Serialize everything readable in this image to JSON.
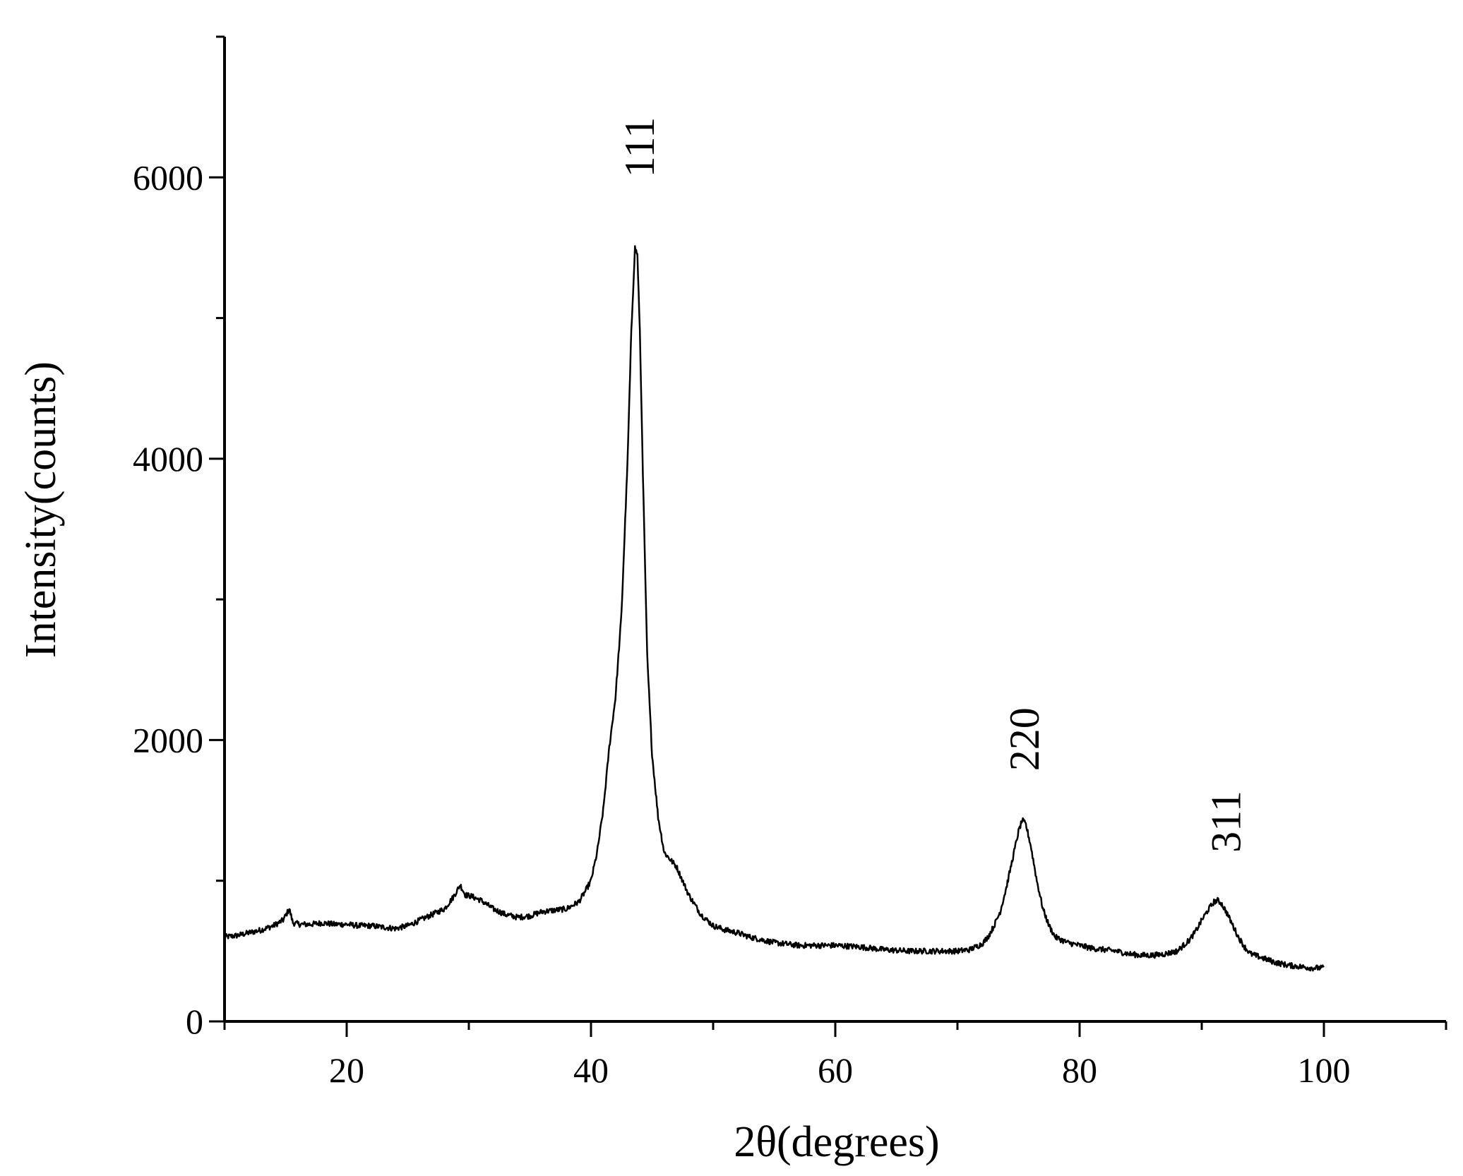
{
  "chart_data": {
    "type": "line",
    "title": "",
    "xlabel": "2θ(degrees)",
    "ylabel": "Intensity(counts)",
    "xlim": [
      10,
      110
    ],
    "ylim": [
      0,
      7000
    ],
    "x_ticks": [
      20,
      40,
      60,
      80,
      100
    ],
    "x_tick_labels": [
      "20",
      "40",
      "60",
      "80",
      "100"
    ],
    "x_minor_ticks": [
      10,
      30,
      50,
      70,
      90,
      110
    ],
    "y_ticks": [
      0,
      2000,
      4000,
      6000
    ],
    "y_tick_labels": [
      "0",
      "2000",
      "4000",
      "6000"
    ],
    "y_minor_ticks": [
      1000,
      3000,
      5000,
      7000
    ],
    "grid": false,
    "series": [
      {
        "x": [
          10,
          11,
          12,
          13,
          14,
          14.8,
          15.3,
          15.6,
          16.2,
          17,
          18,
          19,
          20,
          21,
          22,
          23,
          24,
          25,
          26,
          27,
          28,
          28.7,
          29.3,
          29.7,
          30.2,
          31,
          32,
          33,
          34,
          35,
          36,
          37,
          38,
          39,
          39.5,
          40,
          40.5,
          41,
          41.5,
          42,
          42.5,
          43,
          43.3,
          43.6,
          43.8,
          44,
          44.3,
          44.6,
          45,
          45.5,
          46,
          46.5,
          47,
          47.5,
          48,
          48.5,
          49,
          50,
          51,
          52,
          53,
          54,
          55,
          56,
          57,
          58,
          60,
          62,
          64,
          66,
          68,
          70,
          71,
          72,
          72.5,
          73,
          73.5,
          74,
          74.5,
          75,
          75.3,
          75.6,
          76,
          76.5,
          77,
          77.5,
          78,
          79,
          80,
          81,
          82,
          83,
          84,
          85,
          86,
          87,
          88,
          88.5,
          89,
          89.5,
          90,
          90.5,
          91,
          91.3,
          91.6,
          92,
          92.5,
          93,
          93.5,
          94,
          95,
          96,
          97,
          98,
          99,
          100
        ],
        "y": [
          600,
          610,
          630,
          650,
          680,
          720,
          800,
          700,
          690,
          690,
          700,
          690,
          690,
          680,
          680,
          670,
          660,
          680,
          720,
          760,
          800,
          880,
          970,
          900,
          890,
          860,
          800,
          760,
          740,
          750,
          780,
          790,
          800,
          850,
          920,
          1000,
          1200,
          1500,
          1950,
          2300,
          2900,
          4000,
          4900,
          5500,
          5450,
          4900,
          3700,
          2600,
          1900,
          1450,
          1200,
          1150,
          1100,
          1000,
          900,
          830,
          760,
          680,
          650,
          630,
          600,
          580,
          560,
          550,
          540,
          540,
          540,
          530,
          510,
          500,
          500,
          500,
          510,
          550,
          600,
          680,
          780,
          950,
          1150,
          1350,
          1430,
          1400,
          1250,
          1000,
          800,
          680,
          600,
          560,
          540,
          520,
          510,
          500,
          480,
          470,
          470,
          480,
          500,
          540,
          580,
          640,
          720,
          790,
          850,
          860,
          840,
          780,
          690,
          600,
          530,
          480,
          450,
          420,
          400,
          390,
          380,
          380
        ]
      }
    ],
    "annotations": [
      {
        "text": "111",
        "x": 44,
        "y": 6000
      },
      {
        "text": "220",
        "x": 75.5,
        "y": 1780
      },
      {
        "text": "311",
        "x": 92,
        "y": 1200
      }
    ]
  }
}
